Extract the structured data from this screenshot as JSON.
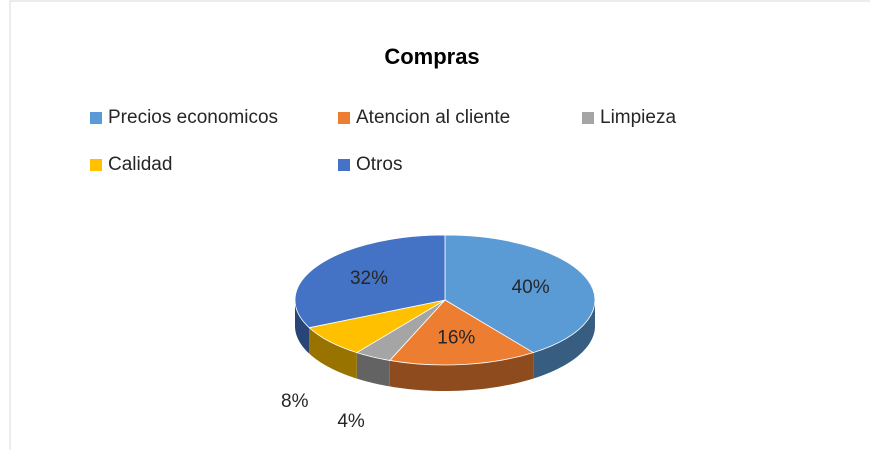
{
  "chart_data": {
    "type": "pie",
    "title": "Compras",
    "categories": [
      "Precios economicos",
      "Atencion al cliente",
      "Limpieza",
      "Calidad",
      "Otros"
    ],
    "values": [
      40,
      16,
      4,
      8,
      32
    ],
    "value_labels": [
      "40%",
      "16%",
      "4%",
      "8%",
      "32%"
    ],
    "colors": [
      "#5b9bd5",
      "#ed7d31",
      "#a5a5a5",
      "#ffc000",
      "#4472c4"
    ],
    "legend": "top"
  }
}
